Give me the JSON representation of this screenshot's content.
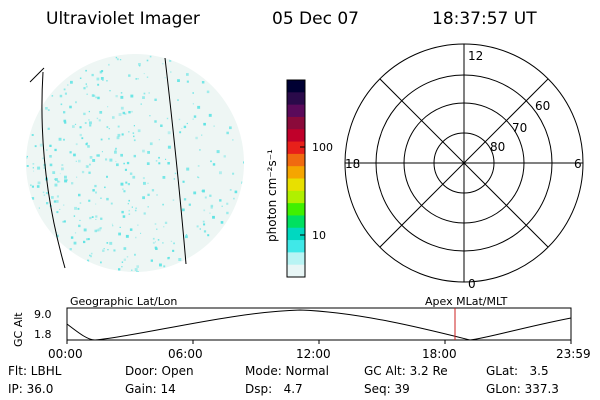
{
  "header": {
    "title": "Ultraviolet Imager",
    "date": "05 Dec 07",
    "time": "18:37:57 UT"
  },
  "image_panel": {
    "point_color": "#5fe3e3"
  },
  "colorbar": {
    "unit_label": "photon cm⁻²s⁻¹",
    "tick_labels": [
      "100",
      "10"
    ],
    "colors": [
      "#000033",
      "#2a0a4a",
      "#5a0a5a",
      "#8a0a3a",
      "#c0002a",
      "#e8201a",
      "#f06a10",
      "#f5a500",
      "#e8e000",
      "#b0f000",
      "#40f000",
      "#00e060",
      "#00d8c0",
      "#40e8e8",
      "#b8f4f4",
      "#e8f6f6"
    ]
  },
  "polar_plot": {
    "clock_labels": {
      "top": "12",
      "left": "18",
      "right": "6",
      "bottom": "0"
    },
    "lat_labels": [
      "60",
      "70",
      "80"
    ]
  },
  "timeline": {
    "left_label": "Geographic Lat/Lon",
    "right_label": "Apex MLat/MLT",
    "axis_label": "GC Alt",
    "y_ticks": [
      "9.0",
      "1.8"
    ],
    "x_ticks": [
      "00:00",
      "06:00",
      "12:00",
      "18:00",
      "23:59"
    ],
    "current_time_marker_color": "#cc2222"
  },
  "info": {
    "filter": "Flt: LBHL",
    "ip": "IP: 36.0",
    "door": "Door: Open",
    "gain": "Gain: 14",
    "mode": "Mode: Normal",
    "dsp": "Dsp:   4.7",
    "gcalt": "GC Alt: 3.2 Re",
    "seq": "Seq: 39",
    "glat": "GLat:   3.5",
    "glon": "GLon: 337.3"
  }
}
